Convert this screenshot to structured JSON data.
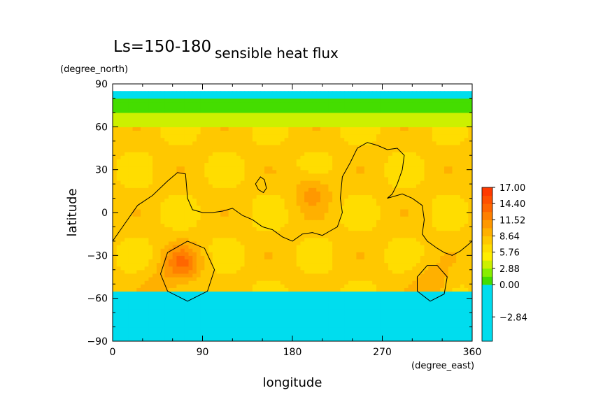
{
  "chart_data": {
    "type": "heatmap",
    "title_left": "Ls=150-180",
    "title": "sensible heat flux",
    "xlabel": "longitude",
    "ylabel": "latitude",
    "x_units": "(degree_east)",
    "y_units": "(degree_north)",
    "xlim": [
      0,
      360
    ],
    "ylim": [
      -90,
      90
    ],
    "x_ticks": [
      0,
      90,
      180,
      270,
      360
    ],
    "y_ticks": [
      -90,
      -60,
      -30,
      0,
      30,
      60,
      90
    ],
    "colorbar": {
      "levels": [
        -5.0,
        -4.26,
        -3.55,
        -2.84,
        -2.13,
        -1.42,
        -0.71,
        0.0,
        1.44,
        2.88,
        4.32,
        5.76,
        7.2,
        8.64,
        10.08,
        11.52,
        12.96,
        14.4,
        15.84,
        17.0
      ],
      "tick_values": [
        17.0,
        14.4,
        11.52,
        8.64,
        5.76,
        2.88,
        0.0,
        -2.84
      ],
      "tick_labels": [
        "17.00",
        "14.40",
        "11.52",
        "8.64",
        "5.76",
        "2.88",
        "0.00",
        "−2.84"
      ],
      "colors": [
        "#00ddee",
        "#00ddee",
        "#00ddee",
        "#00ddee",
        "#00ddee",
        "#00ddee",
        "#00ddee",
        "#44dd00",
        "#88ee00",
        "#ccf000",
        "#ffee00",
        "#ffdd00",
        "#ffc800",
        "#ffb000",
        "#ff9800",
        "#ff8000",
        "#ff6600",
        "#ff5000",
        "#ff3a00"
      ]
    },
    "latitude_bands": [
      {
        "lat_range": [
          -90,
          -55
        ],
        "value": -1.5
      },
      {
        "lat_range": [
          -55,
          60
        ],
        "value": 7.5
      },
      {
        "lat_range": [
          60,
          70
        ],
        "value": 3.5
      },
      {
        "lat_range": [
          70,
          80
        ],
        "value": 1.0
      },
      {
        "lat_range": [
          80,
          85
        ],
        "value": -1.5
      }
    ],
    "hotspots": [
      {
        "lon": 70,
        "lat": -35,
        "value": 12.5
      },
      {
        "lon": 200,
        "lat": 15,
        "value": 10.5
      },
      {
        "lon": 320,
        "lat": -50,
        "value": 10.0
      },
      {
        "lon": 50,
        "lat": -52,
        "value": 9.5
      }
    ],
    "contour_lines": [
      {
        "points": [
          [
            0,
            -20
          ],
          [
            10,
            -10
          ],
          [
            25,
            5
          ],
          [
            40,
            12
          ],
          [
            55,
            22
          ],
          [
            65,
            28
          ],
          [
            73,
            27
          ],
          [
            75,
            10
          ],
          [
            80,
            2
          ],
          [
            90,
            0
          ],
          [
            100,
            0
          ],
          [
            110,
            1
          ],
          [
            120,
            3
          ],
          [
            130,
            -2
          ],
          [
            140,
            -5
          ],
          [
            150,
            -10
          ],
          [
            160,
            -12
          ],
          [
            170,
            -17
          ],
          [
            180,
            -20
          ],
          [
            190,
            -15
          ],
          [
            200,
            -14
          ],
          [
            210,
            -16
          ],
          [
            220,
            -12
          ],
          [
            225,
            -10
          ],
          [
            230,
            0
          ],
          [
            228,
            10
          ],
          [
            230,
            25
          ],
          [
            238,
            35
          ],
          [
            245,
            45
          ],
          [
            255,
            49
          ],
          [
            265,
            47
          ],
          [
            275,
            44
          ],
          [
            285,
            45
          ],
          [
            292,
            40
          ],
          [
            290,
            30
          ],
          [
            285,
            20
          ],
          [
            280,
            13
          ],
          [
            275,
            10
          ],
          [
            290,
            13
          ],
          [
            300,
            10
          ],
          [
            310,
            5
          ],
          [
            312,
            -5
          ],
          [
            310,
            -15
          ],
          [
            315,
            -20
          ],
          [
            325,
            -25
          ],
          [
            332,
            -28
          ],
          [
            340,
            -30
          ],
          [
            348,
            -27
          ],
          [
            355,
            -23
          ],
          [
            360,
            -20
          ]
        ]
      },
      {
        "points": [
          [
            143,
            20
          ],
          [
            148,
            25
          ],
          [
            152,
            23
          ],
          [
            154,
            17
          ],
          [
            151,
            14
          ],
          [
            146,
            16
          ],
          [
            143,
            20
          ]
        ]
      },
      {
        "points": [
          [
            75,
            -20
          ],
          [
            92,
            -25
          ],
          [
            102,
            -40
          ],
          [
            95,
            -55
          ],
          [
            75,
            -62
          ],
          [
            55,
            -55
          ],
          [
            48,
            -43
          ],
          [
            55,
            -28
          ],
          [
            75,
            -20
          ]
        ]
      },
      {
        "points": [
          [
            325,
            -37
          ],
          [
            335,
            -45
          ],
          [
            332,
            -57
          ],
          [
            318,
            -62
          ],
          [
            305,
            -55
          ],
          [
            305,
            -45
          ],
          [
            315,
            -37
          ],
          [
            325,
            -37
          ]
        ]
      }
    ]
  }
}
